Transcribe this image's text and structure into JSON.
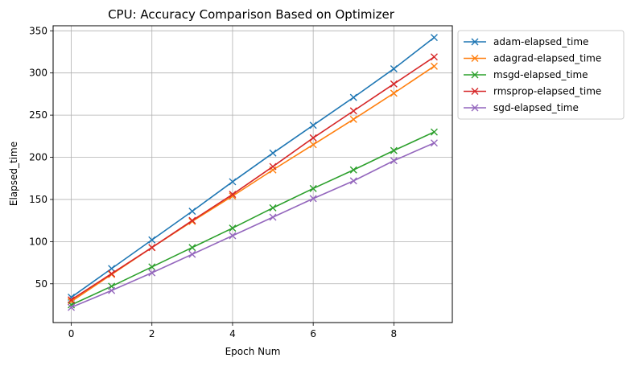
{
  "chart_data": {
    "type": "line",
    "title": "CPU: Accuracy Comparison Based on Optimizer",
    "xlabel": "Epoch Num",
    "ylabel": "Elapsed_time",
    "x": [
      0,
      1,
      2,
      3,
      4,
      5,
      6,
      7,
      8,
      9
    ],
    "xlim": [
      -0.45,
      9.45
    ],
    "ylim": [
      4,
      356
    ],
    "xticks": [
      0,
      2,
      4,
      6,
      8
    ],
    "yticks": [
      50,
      100,
      150,
      200,
      250,
      300,
      350
    ],
    "grid": true,
    "legend_position": "outside-top-right",
    "marker": "x",
    "series": [
      {
        "name": "adam-elapsed_time",
        "color": "#1f77b4",
        "values": [
          34,
          68,
          102,
          136,
          171,
          205,
          238,
          271,
          305,
          342
        ]
      },
      {
        "name": "adagrad-elapsed_time",
        "color": "#ff7f0e",
        "values": [
          29,
          61,
          93,
          124,
          154,
          185,
          215,
          245,
          276,
          308
        ]
      },
      {
        "name": "msgd-elapsed_time",
        "color": "#2ca02c",
        "values": [
          25,
          47,
          70,
          93,
          116,
          140,
          163,
          185,
          208,
          230
        ]
      },
      {
        "name": "rmsprop-elapsed_time",
        "color": "#d62728",
        "values": [
          31,
          62,
          93,
          125,
          156,
          189,
          223,
          255,
          287,
          319
        ]
      },
      {
        "name": "sgd-elapsed_time",
        "color": "#9467bd",
        "values": [
          22,
          42,
          63,
          85,
          107,
          129,
          151,
          172,
          196,
          217
        ]
      }
    ]
  }
}
